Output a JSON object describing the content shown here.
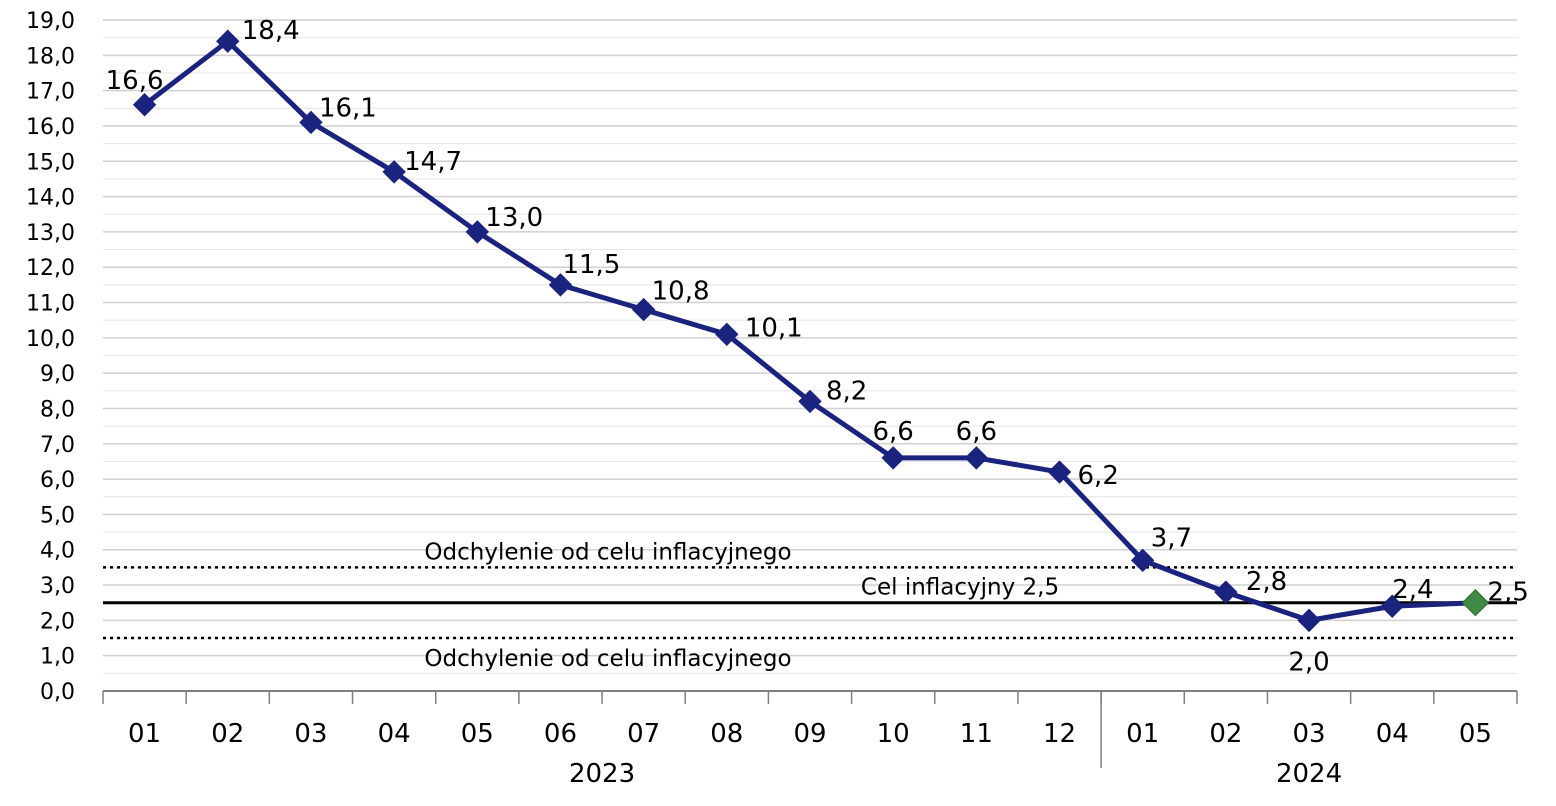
{
  "chart_data": {
    "type": "line",
    "title": "",
    "xlabel": "",
    "ylabel": "",
    "ylim": [
      0,
      19
    ],
    "y_ticks": [
      "0,0",
      "1,0",
      "2,0",
      "3,0",
      "4,0",
      "5,0",
      "6,0",
      "7,0",
      "8,0",
      "9,0",
      "10,0",
      "11,0",
      "12,0",
      "13,0",
      "14,0",
      "15,0",
      "16,0",
      "17,0",
      "18,0",
      "19,0"
    ],
    "grid": "horizontal",
    "categories": [
      "01",
      "02",
      "03",
      "04",
      "05",
      "06",
      "07",
      "08",
      "09",
      "10",
      "11",
      "12",
      "01",
      "02",
      "03",
      "04",
      "05"
    ],
    "year_groups": [
      {
        "label": "2023",
        "count": 12
      },
      {
        "label": "2024",
        "count": 5
      }
    ],
    "series": [
      {
        "values": [
          16.6,
          18.4,
          16.1,
          14.7,
          13.0,
          11.5,
          10.8,
          10.1,
          8.2,
          6.6,
          6.6,
          6.2,
          3.7,
          2.8,
          2.0,
          2.4,
          2.5
        ],
        "labels": [
          "16,6",
          "18,4",
          "16,1",
          "14,7",
          "13,0",
          "11,5",
          "10,8",
          "10,1",
          "8,2",
          "6,6",
          "6,6",
          "6,2",
          "3,7",
          "2,8",
          "2,0",
          "2,4",
          "2,5"
        ],
        "color": "#1a237e",
        "marker_color": "#1a237e",
        "last_marker_color": "#3f8a45"
      }
    ],
    "reference_lines": [
      {
        "value": 3.5,
        "style": "dotted",
        "label": "Odchylenie od celu inflacyjnego",
        "label_position": "above"
      },
      {
        "value": 2.5,
        "style": "solid",
        "label": "Cel inflacyjny 2,5",
        "label_position": "above"
      },
      {
        "value": 1.5,
        "style": "dotted",
        "label": "Odchylenie od celu inflacyjnego",
        "label_position": "below"
      }
    ],
    "colors": {
      "line": "#1a237e",
      "last_point": "#3f8a45",
      "grid": "#d0d0d0",
      "axis": "#808080",
      "reference": "#000000"
    }
  }
}
